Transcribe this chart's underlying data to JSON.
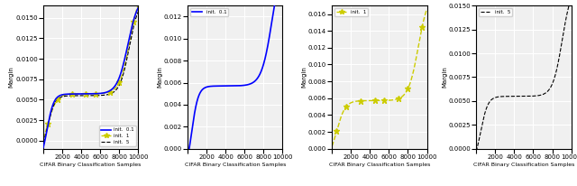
{
  "n_samples": 10000,
  "ylabel": "Margin",
  "xlabel": "CIFAR Binary Classification Samples",
  "line_blue": {
    "label": "init.  0.1",
    "color": "blue",
    "linestyle": "-",
    "linewidth": 1.2
  },
  "line_yellow": {
    "label": "init.  1",
    "color": "#cccc00",
    "linestyle": "--",
    "linewidth": 1.0
  },
  "line_black": {
    "label": "init.  5",
    "color": "black",
    "linestyle": "--",
    "linewidth": 0.8
  },
  "panel1": {
    "ylim": [
      -0.001,
      0.0165
    ],
    "yticks": [
      0.0,
      0.0025,
      0.005,
      0.0075,
      0.01,
      0.0125,
      0.015
    ],
    "show_lines": [
      "blue",
      "yellow",
      "black"
    ],
    "legend_loc": "lower right"
  },
  "panel2": {
    "ylim": [
      0.0,
      0.013
    ],
    "yticks": [
      0.0,
      0.002,
      0.004,
      0.006,
      0.008,
      0.01,
      0.012
    ],
    "show_lines": [
      "blue"
    ],
    "legend_loc": "upper left"
  },
  "panel3": {
    "ylim": [
      0.0,
      0.017
    ],
    "yticks": [
      0.0,
      0.002,
      0.004,
      0.006,
      0.008,
      0.01,
      0.012,
      0.014,
      0.016
    ],
    "show_lines": [
      "yellow"
    ],
    "legend_loc": "upper left"
  },
  "panel4": {
    "ylim": [
      0.0,
      0.015
    ],
    "yticks": [
      0.0,
      0.0025,
      0.005,
      0.0075,
      0.01,
      0.0125,
      0.015
    ],
    "show_lines": [
      "black"
    ],
    "legend_loc": "upper left"
  },
  "bg_color": "#f0f0f0",
  "grid_color": "white",
  "marker_count": 8
}
